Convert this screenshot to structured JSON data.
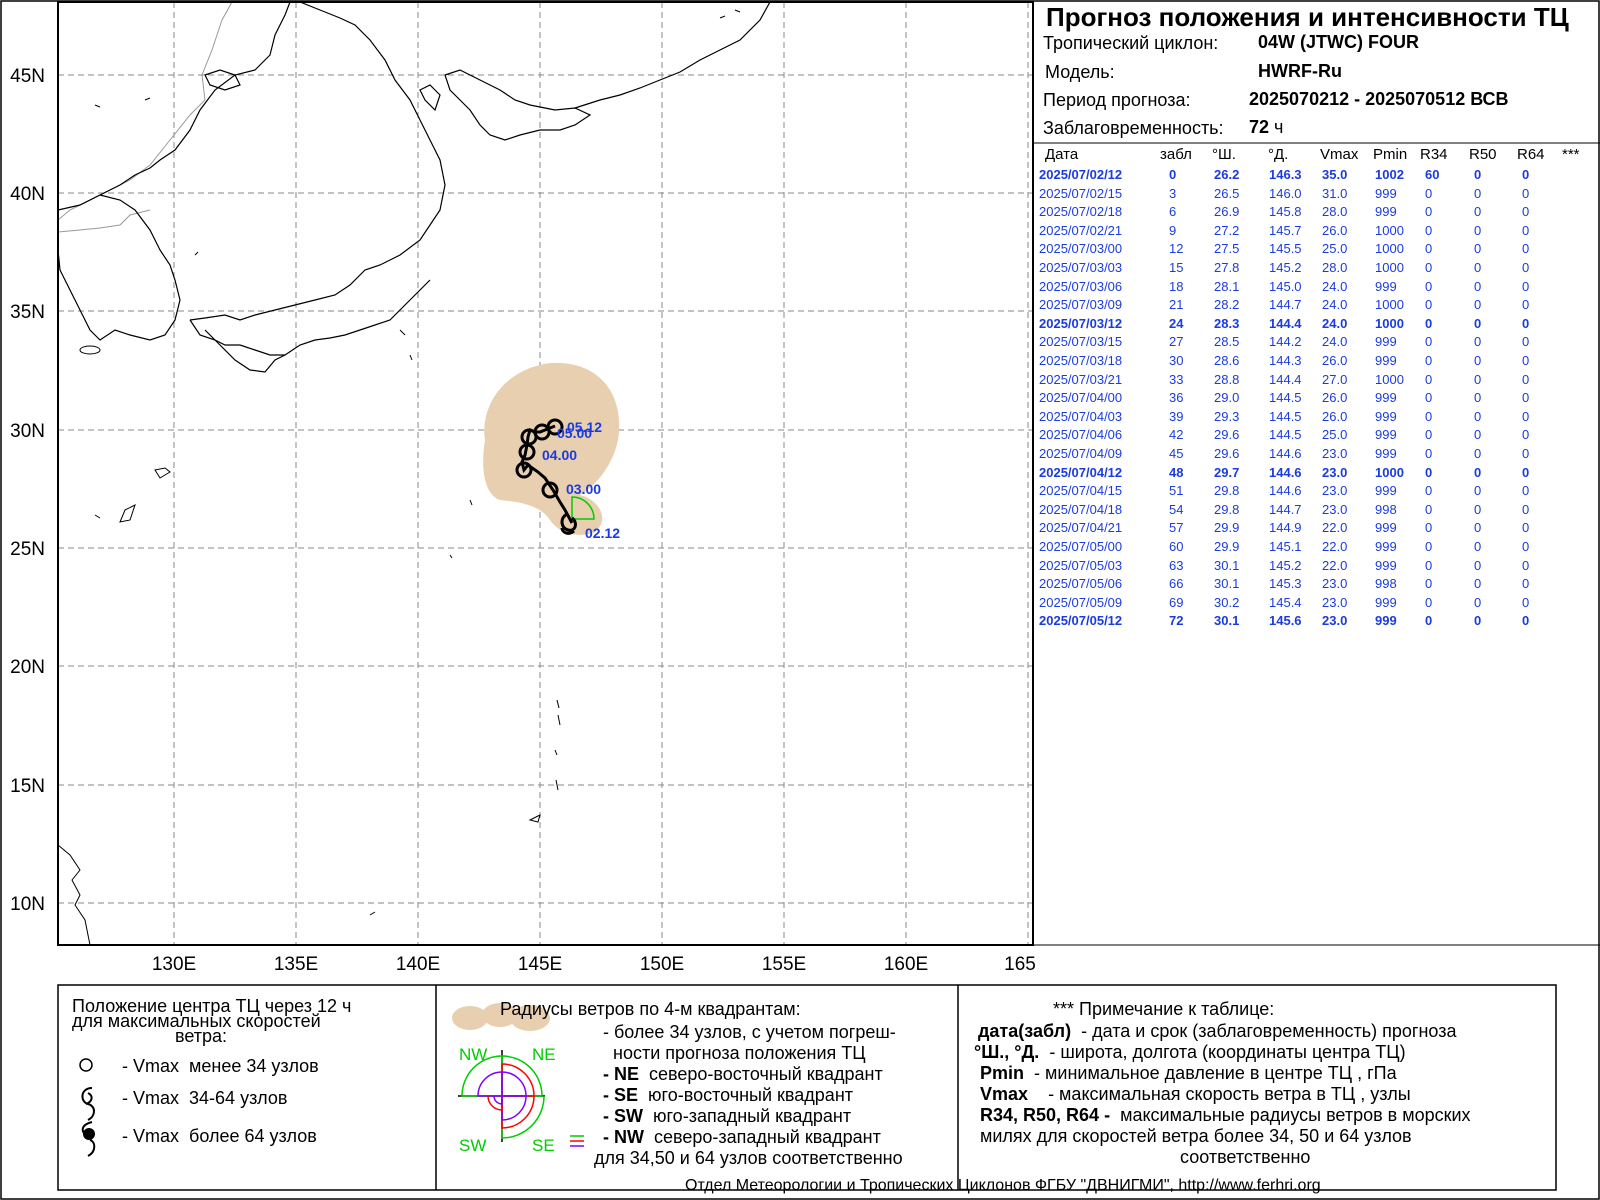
{
  "title": "Прогноз положения и интенсивности ТЦ",
  "info": {
    "cyclone_label": "Тропический циклон:",
    "cyclone_value": "04W (JTWC)  FOUR",
    "model_label": "Модель:",
    "model_value": "HWRF-Ru",
    "period_label": "Период прогноза:",
    "period_value": "2025070212 - 2025070512 ВСВ",
    "lead_label": "Заблаговременность:",
    "lead_value": "72",
    "lead_unit": "ч"
  },
  "table": {
    "headers": [
      "Дата",
      "забл",
      "°Ш.",
      "°Д.",
      "Vmax",
      "Pmin",
      "R34",
      "R50",
      "R64",
      "***"
    ],
    "rows": [
      {
        "date": "2025/07/02/12",
        "lead": "0",
        "lat": "26.2",
        "lon": "146.3",
        "vmax": "35.0",
        "pmin": "1002",
        "r34": "60",
        "r50": "0",
        "r64": "0",
        "bold": true
      },
      {
        "date": "2025/07/02/15",
        "lead": "3",
        "lat": "26.5",
        "lon": "146.0",
        "vmax": "31.0",
        "pmin": "999",
        "r34": "0",
        "r50": "0",
        "r64": "0",
        "bold": false
      },
      {
        "date": "2025/07/02/18",
        "lead": "6",
        "lat": "26.9",
        "lon": "145.8",
        "vmax": "28.0",
        "pmin": "999",
        "r34": "0",
        "r50": "0",
        "r64": "0",
        "bold": false
      },
      {
        "date": "2025/07/02/21",
        "lead": "9",
        "lat": "27.2",
        "lon": "145.7",
        "vmax": "26.0",
        "pmin": "1000",
        "r34": "0",
        "r50": "0",
        "r64": "0",
        "bold": false
      },
      {
        "date": "2025/07/03/00",
        "lead": "12",
        "lat": "27.5",
        "lon": "145.5",
        "vmax": "25.0",
        "pmin": "1000",
        "r34": "0",
        "r50": "0",
        "r64": "0",
        "bold": false
      },
      {
        "date": "2025/07/03/03",
        "lead": "15",
        "lat": "27.8",
        "lon": "145.2",
        "vmax": "28.0",
        "pmin": "1000",
        "r34": "0",
        "r50": "0",
        "r64": "0",
        "bold": false
      },
      {
        "date": "2025/07/03/06",
        "lead": "18",
        "lat": "28.1",
        "lon": "145.0",
        "vmax": "24.0",
        "pmin": "999",
        "r34": "0",
        "r50": "0",
        "r64": "0",
        "bold": false
      },
      {
        "date": "2025/07/03/09",
        "lead": "21",
        "lat": "28.2",
        "lon": "144.7",
        "vmax": "24.0",
        "pmin": "1000",
        "r34": "0",
        "r50": "0",
        "r64": "0",
        "bold": false
      },
      {
        "date": "2025/07/03/12",
        "lead": "24",
        "lat": "28.3",
        "lon": "144.4",
        "vmax": "24.0",
        "pmin": "1000",
        "r34": "0",
        "r50": "0",
        "r64": "0",
        "bold": true
      },
      {
        "date": "2025/07/03/15",
        "lead": "27",
        "lat": "28.5",
        "lon": "144.2",
        "vmax": "24.0",
        "pmin": "999",
        "r34": "0",
        "r50": "0",
        "r64": "0",
        "bold": false
      },
      {
        "date": "2025/07/03/18",
        "lead": "30",
        "lat": "28.6",
        "lon": "144.3",
        "vmax": "26.0",
        "pmin": "999",
        "r34": "0",
        "r50": "0",
        "r64": "0",
        "bold": false
      },
      {
        "date": "2025/07/03/21",
        "lead": "33",
        "lat": "28.8",
        "lon": "144.4",
        "vmax": "27.0",
        "pmin": "1000",
        "r34": "0",
        "r50": "0",
        "r64": "0",
        "bold": false
      },
      {
        "date": "2025/07/04/00",
        "lead": "36",
        "lat": "29.0",
        "lon": "144.5",
        "vmax": "26.0",
        "pmin": "999",
        "r34": "0",
        "r50": "0",
        "r64": "0",
        "bold": false
      },
      {
        "date": "2025/07/04/03",
        "lead": "39",
        "lat": "29.3",
        "lon": "144.5",
        "vmax": "26.0",
        "pmin": "999",
        "r34": "0",
        "r50": "0",
        "r64": "0",
        "bold": false
      },
      {
        "date": "2025/07/04/06",
        "lead": "42",
        "lat": "29.6",
        "lon": "144.5",
        "vmax": "25.0",
        "pmin": "999",
        "r34": "0",
        "r50": "0",
        "r64": "0",
        "bold": false
      },
      {
        "date": "2025/07/04/09",
        "lead": "45",
        "lat": "29.6",
        "lon": "144.6",
        "vmax": "23.0",
        "pmin": "999",
        "r34": "0",
        "r50": "0",
        "r64": "0",
        "bold": false
      },
      {
        "date": "2025/07/04/12",
        "lead": "48",
        "lat": "29.7",
        "lon": "144.6",
        "vmax": "23.0",
        "pmin": "1000",
        "r34": "0",
        "r50": "0",
        "r64": "0",
        "bold": true
      },
      {
        "date": "2025/07/04/15",
        "lead": "51",
        "lat": "29.8",
        "lon": "144.6",
        "vmax": "23.0",
        "pmin": "999",
        "r34": "0",
        "r50": "0",
        "r64": "0",
        "bold": false
      },
      {
        "date": "2025/07/04/18",
        "lead": "54",
        "lat": "29.8",
        "lon": "144.7",
        "vmax": "23.0",
        "pmin": "998",
        "r34": "0",
        "r50": "0",
        "r64": "0",
        "bold": false
      },
      {
        "date": "2025/07/04/21",
        "lead": "57",
        "lat": "29.9",
        "lon": "144.9",
        "vmax": "22.0",
        "pmin": "999",
        "r34": "0",
        "r50": "0",
        "r64": "0",
        "bold": false
      },
      {
        "date": "2025/07/05/00",
        "lead": "60",
        "lat": "29.9",
        "lon": "145.1",
        "vmax": "22.0",
        "pmin": "999",
        "r34": "0",
        "r50": "0",
        "r64": "0",
        "bold": false
      },
      {
        "date": "2025/07/05/03",
        "lead": "63",
        "lat": "30.1",
        "lon": "145.2",
        "vmax": "22.0",
        "pmin": "999",
        "r34": "0",
        "r50": "0",
        "r64": "0",
        "bold": false
      },
      {
        "date": "2025/07/05/06",
        "lead": "66",
        "lat": "30.1",
        "lon": "145.3",
        "vmax": "23.0",
        "pmin": "998",
        "r34": "0",
        "r50": "0",
        "r64": "0",
        "bold": false
      },
      {
        "date": "2025/07/05/09",
        "lead": "69",
        "lat": "30.2",
        "lon": "145.4",
        "vmax": "23.0",
        "pmin": "999",
        "r34": "0",
        "r50": "0",
        "r64": "0",
        "bold": false
      },
      {
        "date": "2025/07/05/12",
        "lead": "72",
        "lat": "30.1",
        "lon": "145.6",
        "vmax": "23.0",
        "pmin": "999",
        "r34": "0",
        "r50": "0",
        "r64": "0",
        "bold": true
      }
    ]
  },
  "map": {
    "lat_labels": [
      "45N",
      "40N",
      "35N",
      "30N",
      "25N",
      "20N",
      "15N",
      "10N"
    ],
    "lon_labels": [
      "130E",
      "135E",
      "140E",
      "145E",
      "150E",
      "155E",
      "160E",
      "165"
    ],
    "track_labels": [
      "02.12",
      "03.00",
      "04.00",
      "05.00",
      "05.12"
    ],
    "colors": {
      "land_line": "#000000",
      "border": "#999999",
      "grid": "#888888",
      "uncertainty": "#e8cfb0",
      "label": "#1a3be0",
      "r34": "#00cc00",
      "r50": "#ff0000",
      "r64": "#8000ff"
    }
  },
  "legend": {
    "left": {
      "title_line1": "Положение центра ТЦ через 12 ч",
      "title_line2": "для максимальных скоростей",
      "title_line3": "ветра:",
      "item1_prefix": "- Vmax",
      "item1_text": "менее 34 узлов",
      "item2_prefix": "- Vmax",
      "item2_text": "34-64 узлов",
      "item3_prefix": "- Vmax",
      "item3_text": "более 64 узлов"
    },
    "middle": {
      "title": "Радиусы ветров по 4-м квадрантам:",
      "line1": "- более 34 узлов, с учетом погреш-",
      "line2": "ности прогноза положения ТЦ",
      "ne_key": "- NE",
      "ne_text": "северо-восточный квадрант",
      "se_key": "- SE",
      "se_text": "юго-восточный квадрант",
      "sw_key": "- SW",
      "sw_text": "юго-западный квадрант",
      "nw_key": "- NW",
      "nw_text": "северо-западный квадрант",
      "last": "для 34,50 и 64 узлов соответственно",
      "q_nw": "NW",
      "q_ne": "NE",
      "q_sw": "SW",
      "q_se": "SE"
    },
    "right": {
      "title": "*** Примечание к таблице:",
      "r1_key": "дата(забл)",
      "r1_text": "- дата и срок (заблаговременность) прогноза",
      "r2_key": "°Ш., °Д.",
      "r2_text": "- широта, долгота   (координаты центра ТЦ)",
      "r3_key": "Pmin",
      "r3_text": "- минимальное давление в центре ТЦ , гПа",
      "r4_key": "Vmax",
      "r4_text": "-  максимальная скорость ветра в ТЦ , узлы",
      "r5_key": "R34, R50, R64 -",
      "r5_text": "максимальные радиусы ветров в морских",
      "r6_text": "милях для скоростей ветра более 34, 50 и 64 узлов",
      "r7_text": "соответственно"
    }
  },
  "footer": "Отдел Метеорологии и Тропических Циклонов ФГБУ \"ДВНИГМИ\",  http://www.ferhri.org"
}
